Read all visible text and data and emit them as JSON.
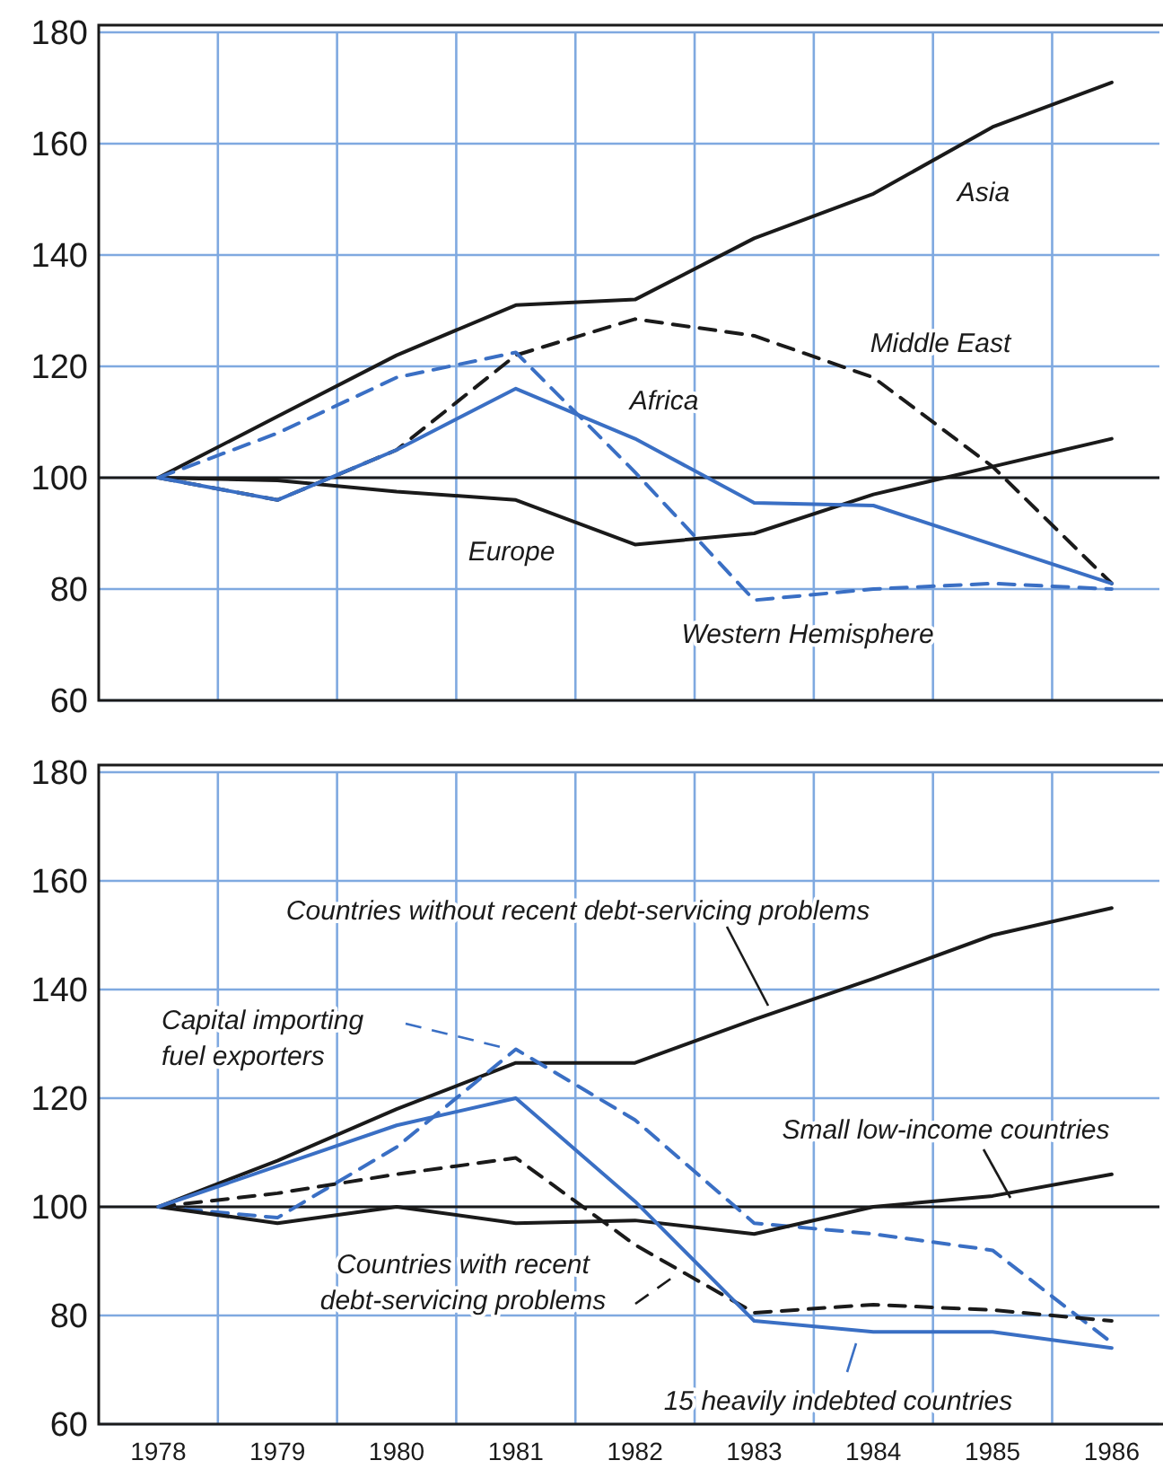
{
  "chart_data": [
    {
      "type": "line",
      "x": [
        1978,
        1979,
        1980,
        1981,
        1982,
        1983,
        1984,
        1985,
        1986
      ],
      "xlim": [
        1977.5,
        1986.4
      ],
      "xticks": [
        {
          "value": 1978,
          "label": null
        },
        {
          "value": 1978.5,
          "label": null
        },
        {
          "value": 1979.5,
          "label": null
        },
        {
          "value": 1980.5,
          "label": null
        },
        {
          "value": 1981.5,
          "label": null
        },
        {
          "value": 1982.5,
          "label": null
        },
        {
          "value": 1983.5,
          "label": null
        },
        {
          "value": 1984.5,
          "label": null
        },
        {
          "value": 1985.5,
          "label": null
        }
      ],
      "ylim": [
        60,
        180
      ],
      "yticks": [
        60,
        80,
        100,
        120,
        140,
        160,
        180
      ],
      "grid": true,
      "tick_labels": "y",
      "marker": "none",
      "ref_lines": [
        {
          "axis": "y",
          "value": 100,
          "label": null,
          "color": "#1a1a1a"
        }
      ],
      "series": [
        {
          "name": "Asia",
          "color": "#1a1a1a",
          "line_style": "solid",
          "values": [
            100,
            111,
            122,
            131,
            132,
            143,
            151,
            163,
            171
          ]
        },
        {
          "name": "Middle East",
          "color": "#1a1a1a",
          "line_style": "dashed",
          "values": [
            100,
            96,
            105,
            122,
            128.5,
            125.5,
            118,
            102,
            81
          ]
        },
        {
          "name": "Europe",
          "color": "#1a1a1a",
          "line_style": "solid",
          "values": [
            100,
            99.5,
            97.5,
            96,
            88,
            90,
            97,
            102,
            107
          ]
        },
        {
          "name": "Africa",
          "color": "#3a6fc4",
          "line_style": "solid",
          "values": [
            100,
            96,
            105,
            116,
            107,
            95.5,
            95,
            88,
            81
          ]
        },
        {
          "name": "Western Hemisphere",
          "color": "#3a6fc4",
          "line_style": "dashed",
          "values": [
            100,
            108,
            118,
            122.5,
            101,
            78,
            80,
            81,
            80
          ]
        }
      ]
    },
    {
      "type": "line",
      "x": [
        1978,
        1979,
        1980,
        1981,
        1982,
        1983,
        1984,
        1985,
        1986
      ],
      "xlim": [
        1977.5,
        1986.4
      ],
      "xticks": [
        1978,
        1979,
        1980,
        1981,
        1982,
        1983,
        1984,
        1985,
        1986,
        {
          "value": 1978.5,
          "label": null
        },
        {
          "value": 1979.5,
          "label": null
        },
        {
          "value": 1980.5,
          "label": null
        },
        {
          "value": 1981.5,
          "label": null
        },
        {
          "value": 1982.5,
          "label": null
        },
        {
          "value": 1983.5,
          "label": null
        },
        {
          "value": 1984.5,
          "label": null
        },
        {
          "value": 1985.5,
          "label": null
        }
      ],
      "ylim": [
        60,
        180
      ],
      "yticks": [
        60,
        80,
        100,
        120,
        140,
        160,
        180
      ],
      "grid": true,
      "legend": "left",
      "marker": "none",
      "ref_lines": [
        {
          "axis": "y",
          "value": 100,
          "label": null,
          "color": "#1a1a1a"
        }
      ],
      "series": [
        {
          "name": "Countries without recent debt-servicing problems",
          "color": "#1a1a1a",
          "line_style": "solid",
          "values": [
            100,
            108.5,
            118,
            126.5,
            126.5,
            134.5,
            142,
            150,
            155
          ]
        },
        {
          "name": "Capital importing fuel exporters",
          "color": "#3a6fc4",
          "line_style": "dashed",
          "values": [
            100,
            98,
            111,
            129,
            116,
            97,
            95,
            92,
            75
          ]
        },
        {
          "name": "Small low-income countries",
          "color": "#1a1a1a",
          "line_style": "solid",
          "values": [
            100,
            97,
            100,
            97,
            97.5,
            95,
            100,
            102,
            106
          ]
        },
        {
          "name": "Countries with recent debt-servicing problems",
          "color": "#1a1a1a",
          "line_style": "dashed",
          "values": [
            100,
            102.5,
            106,
            109,
            93,
            80.5,
            82,
            81,
            79
          ]
        },
        {
          "name": "15 heavily indebted countries",
          "color": "#3a6fc4",
          "line_style": "solid",
          "values": [
            100,
            107.5,
            115,
            120,
            101,
            79,
            77,
            77,
            74
          ]
        }
      ]
    }
  ]
}
